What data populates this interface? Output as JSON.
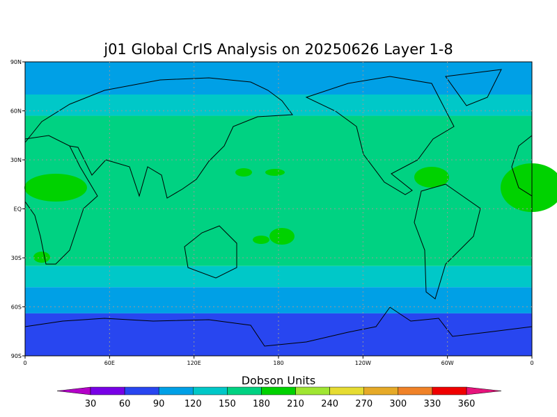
{
  "title": "j01 Global CrIS Analysis on 20250626 Layer 1-8",
  "lat_labels": [
    "90N",
    "60N",
    "30N",
    "EQ",
    "30S",
    "60S",
    "90S"
  ],
  "lon_labels": [
    "0",
    "60E",
    "120E",
    "180",
    "120W",
    "60W",
    "0"
  ],
  "colorbar": {
    "label": "Dobson Units",
    "ticks": [
      30,
      60,
      90,
      120,
      150,
      180,
      210,
      240,
      270,
      300,
      330,
      360
    ],
    "colors": [
      "#b400c8",
      "#7800e6",
      "#2846f0",
      "#00a0e6",
      "#00c8c8",
      "#00d282",
      "#00d200",
      "#a0e632",
      "#e6dc32",
      "#e6aa28",
      "#f08228",
      "#f00000",
      "#e6147c"
    ]
  }
}
